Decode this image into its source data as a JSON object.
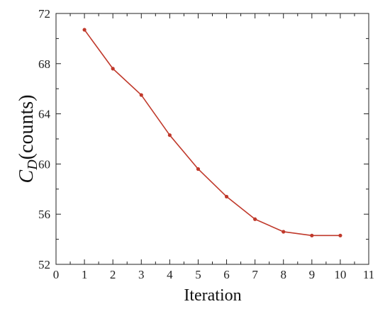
{
  "chart_data": {
    "type": "line",
    "xlabel": "Iteration",
    "ylabel": {
      "main": "C",
      "sub": "D",
      "rest": "(counts)"
    },
    "xlim": [
      0,
      11
    ],
    "ylim": [
      52,
      72
    ],
    "x_ticks": [
      "0",
      "1",
      "2",
      "3",
      "4",
      "5",
      "6",
      "7",
      "8",
      "9",
      "10",
      "11"
    ],
    "y_ticks": [
      "52",
      "56",
      "60",
      "64",
      "68",
      "72"
    ],
    "grid": false,
    "legend": "none",
    "series": [
      {
        "color": "#c0392b",
        "x": [
          1,
          2,
          3,
          4,
          5,
          6,
          7,
          8,
          9,
          10
        ],
        "y": [
          70.7,
          67.6,
          65.5,
          62.3,
          59.6,
          57.4,
          55.6,
          54.6,
          54.3,
          54.3
        ]
      }
    ]
  }
}
